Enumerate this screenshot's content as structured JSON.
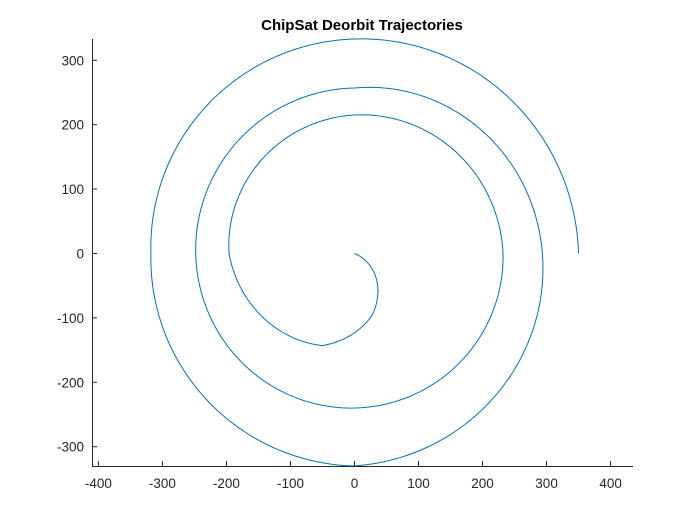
{
  "chart_data": {
    "type": "line",
    "title": "ChipSat Deorbit Trajectories",
    "xlabel": "",
    "ylabel": "",
    "xlim": [
      -410,
      435
    ],
    "ylim": [
      -330,
      333
    ],
    "xticks": [
      -400,
      -300,
      -200,
      -100,
      0,
      100,
      200,
      300,
      400
    ],
    "yticks": [
      -300,
      -200,
      -100,
      0,
      100,
      200,
      300
    ],
    "grid": false,
    "series": [
      {
        "color": "#0072BD",
        "description_points": [
          {
            "x": 350,
            "y": 0
          },
          {
            "x": 0,
            "y": 333
          },
          {
            "x": -318,
            "y": 0
          },
          {
            "x": 0,
            "y": -330
          },
          {
            "x": 0,
            "y": 257
          },
          {
            "x": -248,
            "y": 0
          },
          {
            "x": 0,
            "y": -240
          },
          {
            "x": 232,
            "y": 0
          },
          {
            "x": 0,
            "y": 215
          },
          {
            "x": -196,
            "y": 0
          },
          {
            "x": -50,
            "y": -143
          },
          {
            "x": 28,
            "y": -95
          },
          {
            "x": 0,
            "y": 0
          }
        ],
        "spiral": {
          "x_start": 350,
          "y_start": 0,
          "x_end": 0,
          "y_end": 0,
          "direction": "counterclockwise"
        }
      }
    ]
  }
}
